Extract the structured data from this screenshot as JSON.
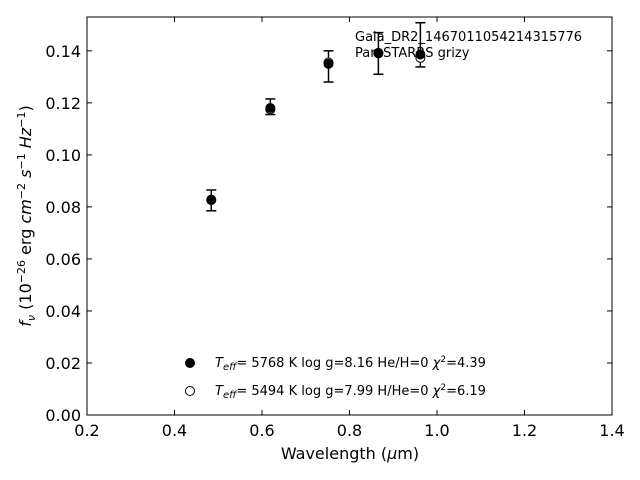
{
  "chart_data": {
    "type": "scatter",
    "xlabel": "Wavelength (μm)",
    "ylabel": "f_ν (10^-26 erg cm^-2 s^-1 Hz^-1)",
    "xlim": [
      0.2,
      1.4
    ],
    "ylim": [
      0.0,
      0.153
    ],
    "x_ticks": [
      0.2,
      0.4,
      0.6,
      0.8,
      1.0,
      1.2,
      1.4
    ],
    "y_ticks": [
      0.0,
      0.02,
      0.04,
      0.06,
      0.08,
      0.1,
      0.12,
      0.14
    ],
    "x_tick_labels": [
      "0.2",
      "0.4",
      "0.6",
      "0.8",
      "1.0",
      "1.2",
      "1.4"
    ],
    "y_tick_labels": [
      "0.00",
      "0.02",
      "0.04",
      "0.06",
      "0.08",
      "0.10",
      "0.12",
      "0.14"
    ],
    "grid": false,
    "annotations": [
      "Gaia_DR2_1467011054214315776",
      "Pan-STARRS grizy"
    ],
    "observed": {
      "x": [
        0.484,
        0.619,
        0.752,
        0.866,
        0.962
      ],
      "y": [
        0.0825,
        0.1185,
        0.134,
        0.139,
        0.1423
      ],
      "yerr": [
        0.004,
        0.003,
        0.006,
        0.008,
        0.0085
      ]
    },
    "series": [
      {
        "name": "T_eff = 5768 K  log g=8.16  He/H=0  χ²=4.39",
        "marker": "filled-circle",
        "x": [
          0.484,
          0.619,
          0.752,
          0.866,
          0.962
        ],
        "y": [
          0.0828,
          0.118,
          0.135,
          0.1392,
          0.1386
        ]
      },
      {
        "name": "T_eff = 5494 K  log g=7.99  H/He=0  χ²=6.19",
        "marker": "open-circle",
        "x": [
          0.484,
          0.619,
          0.752,
          0.866,
          0.962
        ],
        "y": [
          0.0826,
          0.1175,
          0.1355,
          0.139,
          0.1373
        ]
      }
    ],
    "legend": {
      "placement": "lower-center",
      "entries": [
        {
          "teff": "5768",
          "text": "  log g=8.16  He/H=0  ",
          "chi": "=4.39"
        },
        {
          "teff": "5494",
          "text": "  log g=7.99  H/He=0  ",
          "chi": "=6.19"
        }
      ]
    }
  }
}
